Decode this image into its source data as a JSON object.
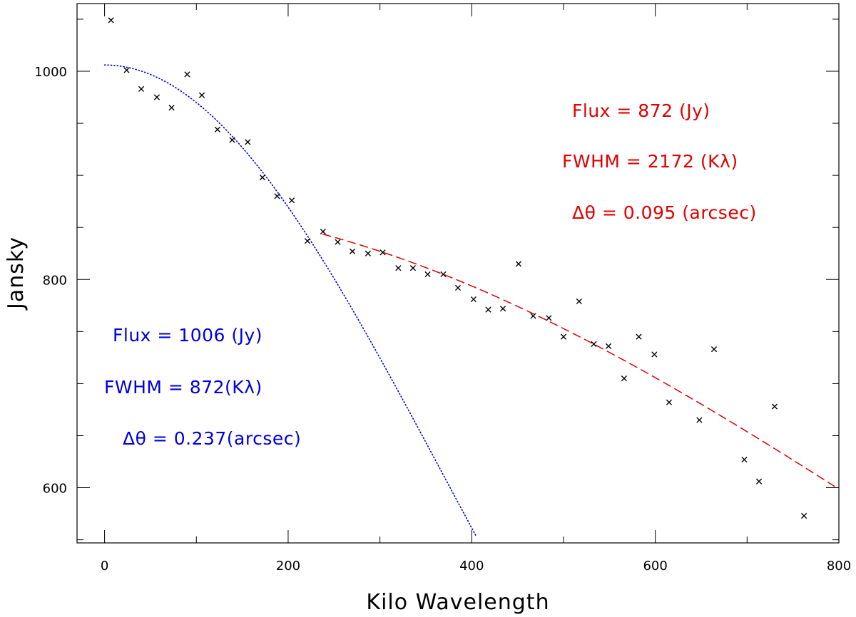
{
  "chart_data": {
    "type": "scatter",
    "xlabel": "Kilo Wavelength",
    "ylabel": "Jansky",
    "xlim": [
      -30,
      800
    ],
    "ylim": [
      547,
      1065
    ],
    "x_ticks": [
      0,
      200,
      400,
      600,
      800
    ],
    "y_ticks": [
      600,
      800,
      1000
    ],
    "x_minor_step": 100,
    "y_minor_step": 50,
    "points": [
      {
        "x": 7,
        "y": 1049
      },
      {
        "x": 24,
        "y": 1001
      },
      {
        "x": 40,
        "y": 983
      },
      {
        "x": 57,
        "y": 975
      },
      {
        "x": 73,
        "y": 965
      },
      {
        "x": 90,
        "y": 997
      },
      {
        "x": 106,
        "y": 977
      },
      {
        "x": 123,
        "y": 944
      },
      {
        "x": 139,
        "y": 934
      },
      {
        "x": 156,
        "y": 932
      },
      {
        "x": 172,
        "y": 898
      },
      {
        "x": 188,
        "y": 880
      },
      {
        "x": 204,
        "y": 876
      },
      {
        "x": 221,
        "y": 837
      },
      {
        "x": 238,
        "y": 846
      },
      {
        "x": 254,
        "y": 836
      },
      {
        "x": 270,
        "y": 827
      },
      {
        "x": 287,
        "y": 825
      },
      {
        "x": 303,
        "y": 826
      },
      {
        "x": 320,
        "y": 811
      },
      {
        "x": 336,
        "y": 811
      },
      {
        "x": 352,
        "y": 805
      },
      {
        "x": 369,
        "y": 805
      },
      {
        "x": 385,
        "y": 792
      },
      {
        "x": 402,
        "y": 781
      },
      {
        "x": 418,
        "y": 771
      },
      {
        "x": 434,
        "y": 772
      },
      {
        "x": 451,
        "y": 815
      },
      {
        "x": 467,
        "y": 765
      },
      {
        "x": 484,
        "y": 763
      },
      {
        "x": 500,
        "y": 745
      },
      {
        "x": 517,
        "y": 779
      },
      {
        "x": 533,
        "y": 738
      },
      {
        "x": 549,
        "y": 736
      },
      {
        "x": 566,
        "y": 705
      },
      {
        "x": 582,
        "y": 745
      },
      {
        "x": 599,
        "y": 728
      },
      {
        "x": 615,
        "y": 682
      },
      {
        "x": 648,
        "y": 665
      },
      {
        "x": 664,
        "y": 733
      },
      {
        "x": 697,
        "y": 627
      },
      {
        "x": 713,
        "y": 606
      },
      {
        "x": 730,
        "y": 678
      },
      {
        "x": 762,
        "y": 573
      }
    ],
    "fits": [
      {
        "name": "Gaussian fit 1",
        "style": "dotted",
        "color": "#0000e0",
        "flux": 1006,
        "fwhm": 872,
        "x_range": [
          0,
          405
        ]
      },
      {
        "name": "Gaussian fit 2",
        "style": "dashed",
        "color": "#e00000",
        "flux": 872,
        "fwhm": 2172,
        "x_range": [
          238,
          800
        ]
      }
    ],
    "annotations": {
      "blue": {
        "color": "#0000e0",
        "flux_line": "Flux = 1006 (Jy)",
        "fwhm_line": "FWHM =  872(Kλ)",
        "dtheta_line": "Δθ = 0.237(arcsec)"
      },
      "red": {
        "color": "#e00000",
        "flux_line": "Flux =  872 (Jy)",
        "fwhm_line": "FWHM =  2172 (Kλ)",
        "dtheta_line": "Δθ = 0.095  (arcsec)"
      }
    }
  }
}
